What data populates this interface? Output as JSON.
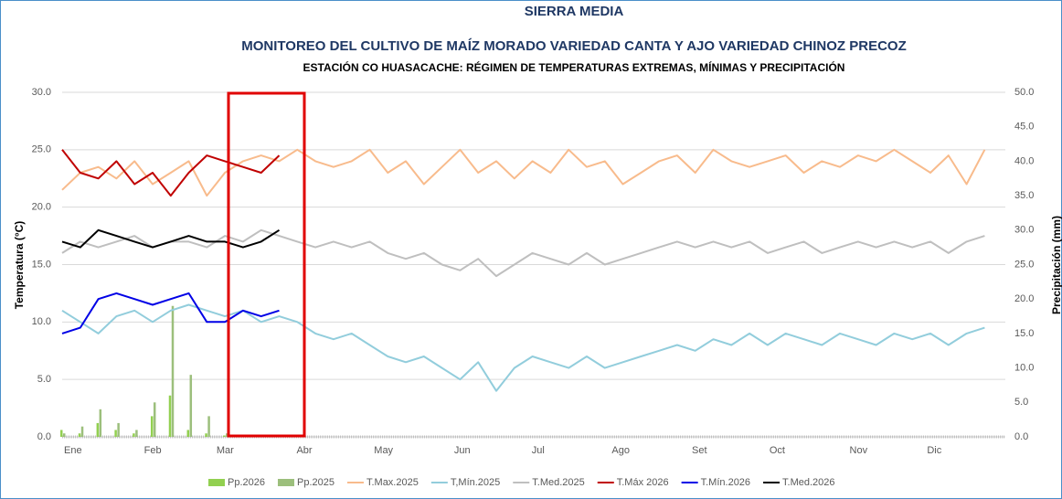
{
  "chart_data": {
    "type": "combo",
    "title": "SIERRA MEDIA",
    "subtitle": "MONITOREO DEL CULTIVO DE MAÍZ MORADO VARIEDAD CANTA Y AJO VARIEDAD CHINOZ PRECOZ",
    "subtitle2": "ESTACIÓN CO HUASACACHE: RÉGIMEN DE TEMPERATURAS EXTREMAS, MÍNIMAS Y PRECIPITACIÓN",
    "y_label": "Temperatura (°C)",
    "y2_label": "Precipitación (mm)",
    "x": [
      1,
      8,
      15,
      22,
      29,
      36,
      43,
      50,
      57,
      64,
      71,
      78,
      85,
      92,
      99,
      106,
      113,
      120,
      127,
      134,
      141,
      148,
      155,
      162,
      169,
      176,
      183,
      190,
      197,
      204,
      211,
      218,
      225,
      232,
      239,
      246,
      253,
      260,
      267,
      274,
      281,
      288,
      295,
      302,
      309,
      316,
      323,
      330,
      337,
      344,
      351,
      358
    ],
    "xlim": [
      1,
      366
    ],
    "xticks": [
      {
        "value": 1,
        "label": "Ene"
      },
      {
        "value": 32,
        "label": "Feb"
      },
      {
        "value": 60,
        "label": "Mar"
      },
      {
        "value": 91,
        "label": "Abr"
      },
      {
        "value": 121,
        "label": "May"
      },
      {
        "value": 152,
        "label": "Jun"
      },
      {
        "value": 182,
        "label": "Jul"
      },
      {
        "value": 213,
        "label": "Ago"
      },
      {
        "value": 244,
        "label": "Set"
      },
      {
        "value": 274,
        "label": "Oct"
      },
      {
        "value": 305,
        "label": "Nov"
      },
      {
        "value": 335,
        "label": "Dic"
      }
    ],
    "ylim": [
      0,
      30
    ],
    "yticks": [
      {
        "value": 0,
        "label": "0.0"
      },
      {
        "value": 5,
        "label": "5.0"
      },
      {
        "value": 10,
        "label": "10.0"
      },
      {
        "value": 15,
        "label": "15.0"
      },
      {
        "value": 20,
        "label": "20.0"
      },
      {
        "value": 25,
        "label": "25.0"
      },
      {
        "value": 30,
        "label": "30.0"
      }
    ],
    "y2lim": [
      0,
      50
    ],
    "y2ticks": [
      {
        "value": 0,
        "label": "0.0"
      },
      {
        "value": 5,
        "label": "5.0"
      },
      {
        "value": 10,
        "label": "10.0"
      },
      {
        "value": 15,
        "label": "15.0"
      },
      {
        "value": 20,
        "label": "20.0"
      },
      {
        "value": 25,
        "label": "25.0"
      },
      {
        "value": 30,
        "label": "30.0"
      },
      {
        "value": 35,
        "label": "35.0"
      },
      {
        "value": 40,
        "label": "40.0"
      },
      {
        "value": 45,
        "label": "45.0"
      },
      {
        "value": 50,
        "label": "50.0"
      }
    ],
    "grid": true,
    "series": [
      {
        "name": "Pp.2026",
        "type": "bar",
        "axis": "y2",
        "color": "#92d050",
        "values": [
          1,
          0.5,
          2,
          1,
          0.5,
          3,
          6,
          1,
          0.5,
          0.2,
          0,
          0,
          0,
          null,
          null,
          null,
          null,
          null,
          null,
          null,
          null,
          null,
          null,
          null,
          null,
          null,
          null,
          null,
          null,
          null,
          null,
          null,
          null,
          null,
          null,
          null,
          null,
          null,
          null,
          null,
          null,
          null,
          null,
          null,
          null,
          null,
          null,
          null,
          null,
          null,
          null,
          null
        ]
      },
      {
        "name": "Pp.2025",
        "type": "bar",
        "axis": "y2",
        "color": "#9cbf7c",
        "values": [
          0.5,
          1.5,
          4,
          2,
          1,
          5,
          19,
          9,
          3,
          0.5,
          0.2,
          0,
          0,
          0,
          0,
          0,
          0,
          0,
          0,
          0,
          0,
          0,
          0,
          0,
          0,
          0,
          0,
          0,
          0,
          0,
          0,
          0,
          0,
          0,
          0,
          0,
          0,
          0,
          0,
          0,
          0,
          0,
          0,
          0,
          0,
          0,
          0,
          0,
          0,
          0,
          0,
          0
        ]
      },
      {
        "name": "T.Max.2025",
        "type": "line",
        "color": "#f8bb8c",
        "values": [
          21.5,
          23,
          23.5,
          22.5,
          24,
          22,
          23,
          24,
          21,
          23,
          24,
          24.5,
          24,
          25,
          24,
          23.5,
          24,
          25,
          23,
          24,
          22,
          23.5,
          25,
          23,
          24,
          22.5,
          24,
          23,
          25,
          23.5,
          24,
          22,
          23,
          24,
          24.5,
          23,
          25,
          24,
          23.5,
          24,
          24.5,
          23,
          24,
          23.5,
          24.5,
          24,
          25,
          24,
          23,
          24.5,
          22,
          25
        ]
      },
      {
        "name": "T,Mín.2025",
        "type": "line",
        "color": "#92cddc",
        "values": [
          11,
          10,
          9,
          10.5,
          11,
          10,
          11,
          11.5,
          11,
          10.5,
          11,
          10,
          10.5,
          10,
          9,
          8.5,
          9,
          8,
          7,
          6.5,
          7,
          6,
          5,
          6.5,
          4,
          6,
          7,
          6.5,
          6,
          7,
          6,
          6.5,
          7,
          7.5,
          8,
          7.5,
          8.5,
          8,
          9,
          8,
          9,
          8.5,
          8,
          9,
          8.5,
          8,
          9,
          8.5,
          9,
          8,
          9,
          9.5
        ]
      },
      {
        "name": "T.Med.2025",
        "type": "line",
        "color": "#bfbfbf",
        "values": [
          16,
          17,
          16.5,
          17,
          17.5,
          16.5,
          17,
          17,
          16.5,
          17.5,
          17,
          18,
          17.5,
          17,
          16.5,
          17,
          16.5,
          17,
          16,
          15.5,
          16,
          15,
          14.5,
          15.5,
          14,
          15,
          16,
          15.5,
          15,
          16,
          15,
          15.5,
          16,
          16.5,
          17,
          16.5,
          17,
          16.5,
          17,
          16,
          16.5,
          17,
          16,
          16.5,
          17,
          16.5,
          17,
          16.5,
          17,
          16,
          17,
          17.5
        ]
      },
      {
        "name": "T.Máx 2026",
        "type": "line",
        "color": "#c00000",
        "values": [
          25,
          23,
          22.5,
          24,
          22,
          23,
          21,
          23,
          24.5,
          24,
          23.5,
          23,
          24.5,
          null,
          null,
          null,
          null,
          null,
          null,
          null,
          null,
          null,
          null,
          null,
          null,
          null,
          null,
          null,
          null,
          null,
          null,
          null,
          null,
          null,
          null,
          null,
          null,
          null,
          null,
          null,
          null,
          null,
          null,
          null,
          null,
          null,
          null,
          null,
          null,
          null,
          null,
          null
        ]
      },
      {
        "name": "T.Mín.2026",
        "type": "line",
        "color": "#0000e6",
        "values": [
          9,
          9.5,
          12,
          12.5,
          12,
          11.5,
          12,
          12.5,
          10,
          10,
          11,
          10.5,
          11,
          null,
          null,
          null,
          null,
          null,
          null,
          null,
          null,
          null,
          null,
          null,
          null,
          null,
          null,
          null,
          null,
          null,
          null,
          null,
          null,
          null,
          null,
          null,
          null,
          null,
          null,
          null,
          null,
          null,
          null,
          null,
          null,
          null,
          null,
          null,
          null,
          null,
          null,
          null
        ]
      },
      {
        "name": "T.Med.2026",
        "type": "line",
        "color": "#000000",
        "values": [
          17,
          16.5,
          18,
          17.5,
          17,
          16.5,
          17,
          17.5,
          17,
          17,
          16.5,
          17,
          18,
          null,
          null,
          null,
          null,
          null,
          null,
          null,
          null,
          null,
          null,
          null,
          null,
          null,
          null,
          null,
          null,
          null,
          null,
          null,
          null,
          null,
          null,
          null,
          null,
          null,
          null,
          null,
          null,
          null,
          null,
          null,
          null,
          null,
          null,
          null,
          null,
          null,
          null,
          null
        ]
      }
    ]
  }
}
